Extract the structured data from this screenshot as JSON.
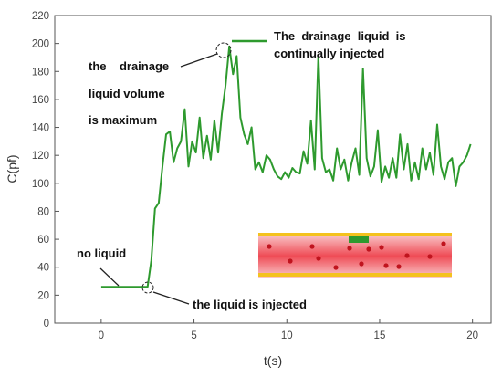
{
  "chart_data": {
    "type": "line",
    "xlabel": "t(s)",
    "ylabel": "C(pf)",
    "xlim": [
      -2.5,
      21
    ],
    "ylim": [
      0,
      220
    ],
    "xticks": [
      0,
      5,
      10,
      15,
      20
    ],
    "yticks": [
      0,
      20,
      40,
      60,
      80,
      100,
      120,
      140,
      160,
      180,
      200,
      220
    ],
    "grid": false,
    "series": [
      {
        "color": "#2e9a2e",
        "x": [
          0,
          2.5,
          2.7,
          2.9,
          3.1,
          3.3,
          3.5,
          3.7,
          3.9,
          4.1,
          4.3,
          4.5,
          4.7,
          4.9,
          5.1,
          5.3,
          5.5,
          5.7,
          5.9,
          6.1,
          6.3,
          6.5,
          6.7,
          6.9,
          7.1,
          7.3,
          7.5,
          7.7,
          7.9,
          8.1,
          8.3,
          8.5,
          8.7,
          8.9,
          9.1,
          9.3,
          9.5,
          9.7,
          9.9,
          10.1,
          10.3,
          10.5,
          10.7,
          10.9,
          11.1,
          11.3,
          11.5,
          11.7,
          11.9,
          12.1,
          12.3,
          12.5,
          12.7,
          12.9,
          13.1,
          13.3,
          13.5,
          13.7,
          13.9,
          14.1,
          14.3,
          14.5,
          14.7,
          14.9,
          15.1,
          15.3,
          15.5,
          15.7,
          15.9,
          16.1,
          16.3,
          16.5,
          16.7,
          16.9,
          17.1,
          17.3,
          17.5,
          17.7,
          17.9,
          18.1,
          18.3,
          18.5,
          18.7,
          18.9,
          19.1,
          19.3,
          19.5,
          19.7,
          19.9
        ],
        "values": [
          26,
          26,
          45,
          82,
          86,
          112,
          135,
          137,
          115,
          125,
          130,
          153,
          112,
          130,
          122,
          147,
          118,
          134,
          117,
          145,
          122,
          150,
          170,
          198,
          178,
          191,
          147,
          135,
          128,
          140,
          110,
          115,
          108,
          120,
          117,
          110,
          105,
          103,
          108,
          104,
          111,
          108,
          107,
          123,
          114,
          145,
          110,
          192,
          118,
          108,
          110,
          102,
          125,
          110,
          117,
          102,
          115,
          125,
          106,
          182,
          118,
          105,
          112,
          138,
          101,
          112,
          104,
          118,
          104,
          135,
          110,
          128,
          102,
          115,
          103,
          125,
          110,
          122,
          106,
          142,
          112,
          103,
          115,
          118,
          98,
          112,
          115,
          120,
          128
        ]
      }
    ],
    "annotations": {
      "no_liquid": "no liquid",
      "injected": "the liquid is injected",
      "max_line1": "the    drainage",
      "max_line2": "liquid volume",
      "max_line3": "is maximum",
      "cont_line1": "The  drainage  liquid  is",
      "cont_line2": "continually injected"
    },
    "colors": {
      "line": "#2e9a2e",
      "pipe_fill": "#ef4b55",
      "pipe_edge": "#f4c21e",
      "particle": "#c0141e",
      "sensor": "#2e9a2e"
    }
  }
}
